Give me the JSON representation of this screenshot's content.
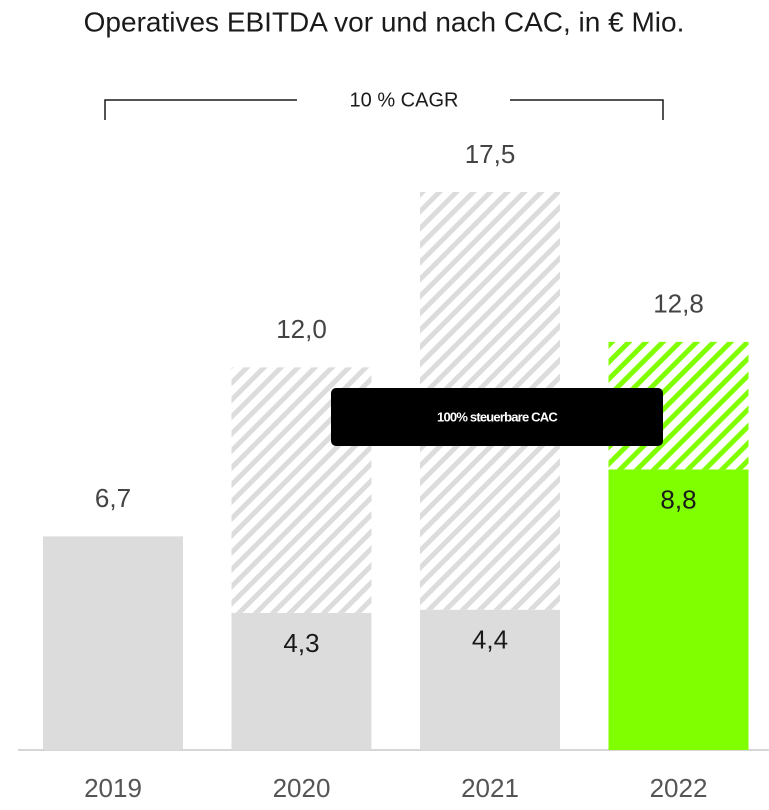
{
  "chart_data": {
    "type": "stacked-bar",
    "title": "Operatives EBITDA vor und nach CAC, in € Mio.",
    "categories": [
      "2019",
      "2020",
      "2021",
      "2022"
    ],
    "series": [
      {
        "colors": [
          "#dcdcdc",
          "#dcdcdc",
          "#dcdcdc",
          "#80ff00"
        ],
        "values": [
          6.7,
          4.3,
          4.4,
          8.8
        ],
        "value_labels": [
          null,
          "4,3",
          "4,4",
          "8,8"
        ]
      },
      {
        "colors": [
          "#dcdcdc",
          "#dcdcdc",
          "#dcdcdc",
          "#80ff00"
        ],
        "hatched": true,
        "values": [
          null,
          7.7,
          13.1,
          4.0
        ]
      }
    ],
    "totals": {
      "values": [
        6.7,
        12.0,
        17.5,
        12.8
      ],
      "value_labels": [
        "6,7",
        "12,0",
        "17,5",
        "12,8"
      ]
    },
    "ylim": [
      0,
      17.5
    ],
    "annotations": [
      "10 % CAGR",
      "100% steuerbare CAC"
    ]
  }
}
